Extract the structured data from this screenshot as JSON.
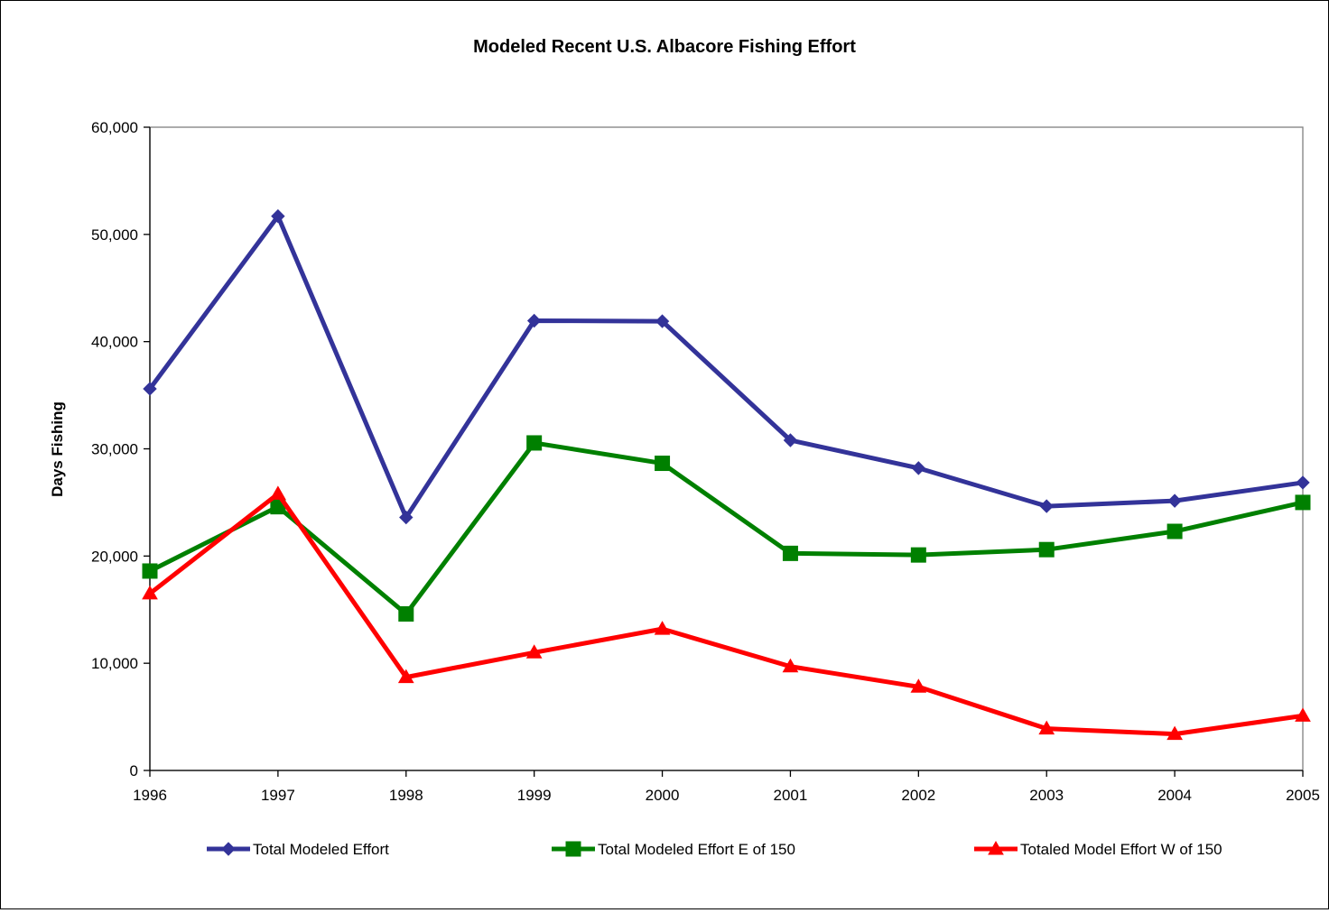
{
  "chart_data": {
    "type": "line",
    "title": "Modeled Recent U.S. Albacore Fishing Effort",
    "xlabel": "",
    "ylabel": "Days Fishing",
    "x": [
      "1996",
      "1997",
      "1998",
      "1999",
      "2000",
      "2001",
      "2002",
      "2003",
      "2004",
      "2005"
    ],
    "ylim": [
      0,
      60000
    ],
    "yticks": [
      {
        "value": 0,
        "label": "0"
      },
      {
        "value": 10000,
        "label": "10,000"
      },
      {
        "value": 20000,
        "label": "20,000"
      },
      {
        "value": 30000,
        "label": "30,000"
      },
      {
        "value": 40000,
        "label": "40,000"
      },
      {
        "value": 50000,
        "label": "50,000"
      },
      {
        "value": 60000,
        "label": "60,000"
      }
    ],
    "grid": false,
    "legend_position": "bottom",
    "series": [
      {
        "name": "Total Modeled Effort",
        "color": "#333399",
        "marker": "diamond",
        "values": [
          35600,
          51700,
          23600,
          41950,
          41900,
          30800,
          28200,
          24650,
          25150,
          26850
        ]
      },
      {
        "name": "Total Modeled Effort E of 150",
        "color": "#008000",
        "marker": "square",
        "values": [
          18600,
          24600,
          14600,
          30550,
          28650,
          20250,
          20100,
          20600,
          22300,
          25000
        ]
      },
      {
        "name": "Totaled Model Effort W of 150",
        "color": "#ff0000",
        "marker": "triangle",
        "values": [
          16500,
          25800,
          8700,
          11000,
          13200,
          9700,
          7800,
          3900,
          3400,
          5100
        ]
      }
    ]
  }
}
